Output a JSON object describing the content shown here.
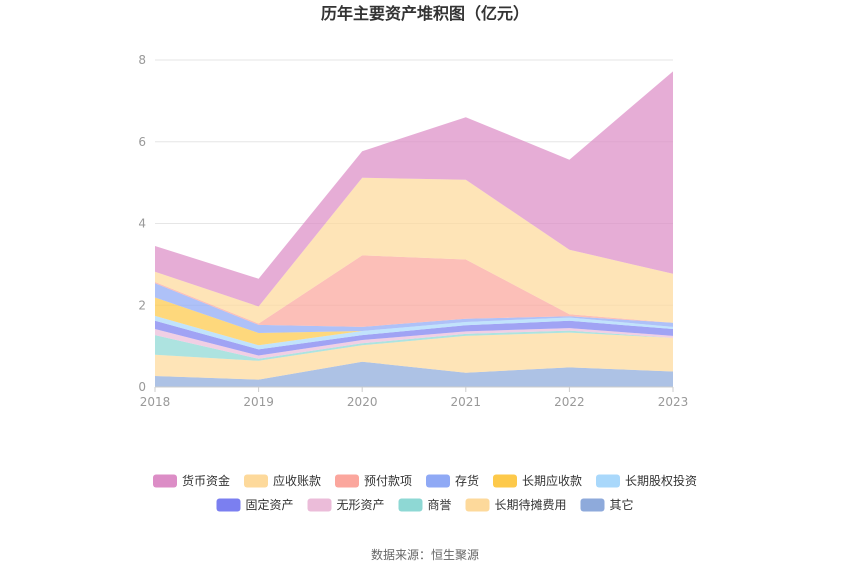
{
  "chart_data": {
    "type": "area",
    "stacked": true,
    "title": "历年主要资产堆积图（亿元）",
    "x": [
      "2018",
      "2019",
      "2020",
      "2021",
      "2022",
      "2023"
    ],
    "ylim": [
      0,
      8
    ],
    "yticks": [
      0,
      2,
      4,
      6,
      8
    ],
    "grid": true,
    "legend_position": "bottom",
    "series": [
      {
        "name": "其它",
        "color": "#8eaadb",
        "values": [
          0.27,
          0.18,
          0.62,
          0.35,
          0.48,
          0.38
        ]
      },
      {
        "name": "长期待摊费用",
        "color": "#fdd99b",
        "values": [
          0.52,
          0.46,
          0.4,
          0.9,
          0.85,
          0.82
        ]
      },
      {
        "name": "商誉",
        "color": "#8ed8d4",
        "values": [
          0.48,
          0.05,
          0.05,
          0.05,
          0.05,
          0.0
        ]
      },
      {
        "name": "无形资产",
        "color": "#ebbcd9",
        "values": [
          0.15,
          0.08,
          0.08,
          0.06,
          0.06,
          0.05
        ]
      },
      {
        "name": "固定资产",
        "color": "#7b7ff0",
        "values": [
          0.2,
          0.15,
          0.12,
          0.15,
          0.18,
          0.17
        ]
      },
      {
        "name": "长期股权投资",
        "color": "#a9d8fb",
        "values": [
          0.12,
          0.1,
          0.1,
          0.08,
          0.08,
          0.05
        ]
      },
      {
        "name": "长期应收款",
        "color": "#fdc94a",
        "values": [
          0.45,
          0.3,
          0.0,
          0.0,
          0.0,
          0.0
        ]
      },
      {
        "name": "存货",
        "color": "#8fa9f5",
        "values": [
          0.35,
          0.2,
          0.1,
          0.08,
          0.03,
          0.1
        ]
      },
      {
        "name": "预付款项",
        "color": "#fba69d",
        "values": [
          0.03,
          0.03,
          1.75,
          1.45,
          0.05,
          0.0
        ]
      },
      {
        "name": "应收账款",
        "color": "#fdd99b",
        "values": [
          0.25,
          0.42,
          1.9,
          1.95,
          1.58,
          1.2
        ]
      },
      {
        "name": "货币资金",
        "color": "#dc8dc6",
        "values": [
          0.63,
          0.68,
          0.65,
          1.53,
          2.2,
          4.95
        ]
      }
    ],
    "legend_order": [
      "货币资金",
      "应收账款",
      "预付款项",
      "存货",
      "长期应收款",
      "长期股权投资",
      "固定资产",
      "无形资产",
      "商誉",
      "长期待摊费用",
      "其它"
    ]
  },
  "footer": {
    "source": "数据来源：恒生聚源"
  }
}
